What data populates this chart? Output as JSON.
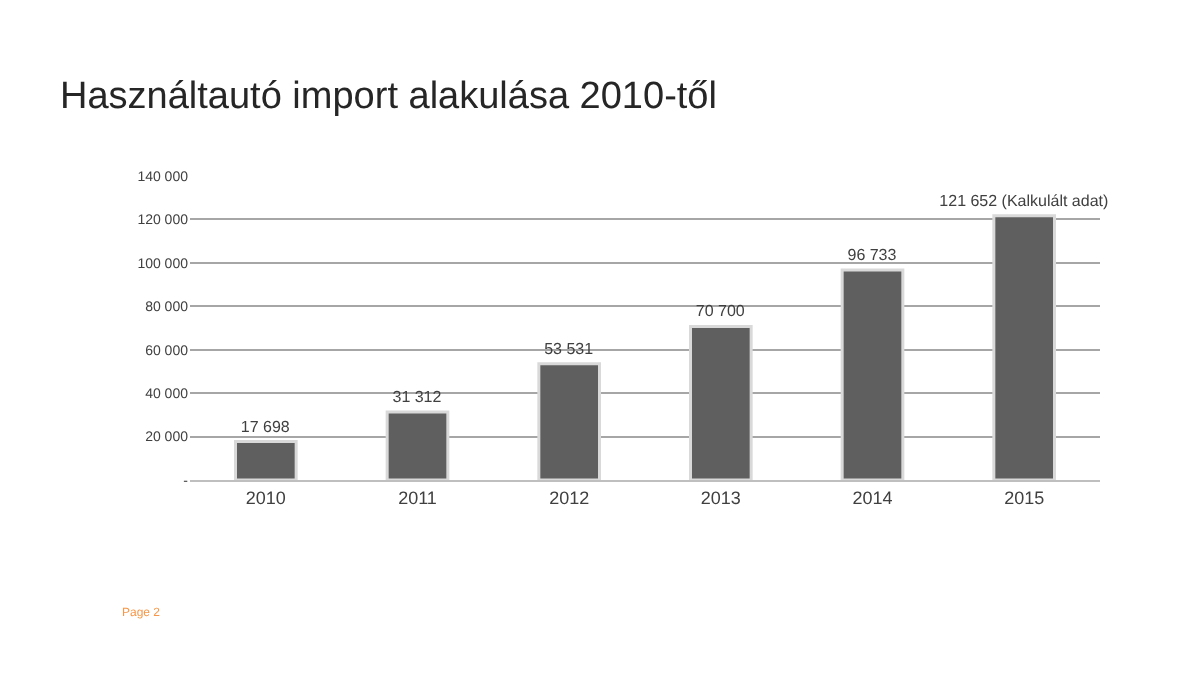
{
  "chart_data": {
    "type": "bar",
    "title": "Használtautó import alakulása 2010-től",
    "categories": [
      "2010",
      "2011",
      "2012",
      "2013",
      "2014",
      "2015"
    ],
    "values": [
      17698,
      31312,
      53531,
      70700,
      96733,
      121652
    ],
    "value_labels": [
      "17 698",
      "31 312",
      "53 531",
      "70 700",
      "96 733",
      "121 652 (Kalkulált adat)"
    ],
    "color": "#5f5f5f",
    "ylim": [
      0,
      140000
    ],
    "yticks": [
      {
        "value": 0,
        "label": "-"
      },
      {
        "value": 20000,
        "label": "20 000"
      },
      {
        "value": 40000,
        "label": "40 000"
      },
      {
        "value": 60000,
        "label": "60 000"
      },
      {
        "value": 80000,
        "label": "80 000"
      },
      {
        "value": 100000,
        "label": "100 000"
      },
      {
        "value": 120000,
        "label": "120 000"
      },
      {
        "value": 140000,
        "label": "140 000"
      }
    ],
    "grid": "y",
    "legend": false,
    "annotations": [
      "Page 2"
    ]
  }
}
